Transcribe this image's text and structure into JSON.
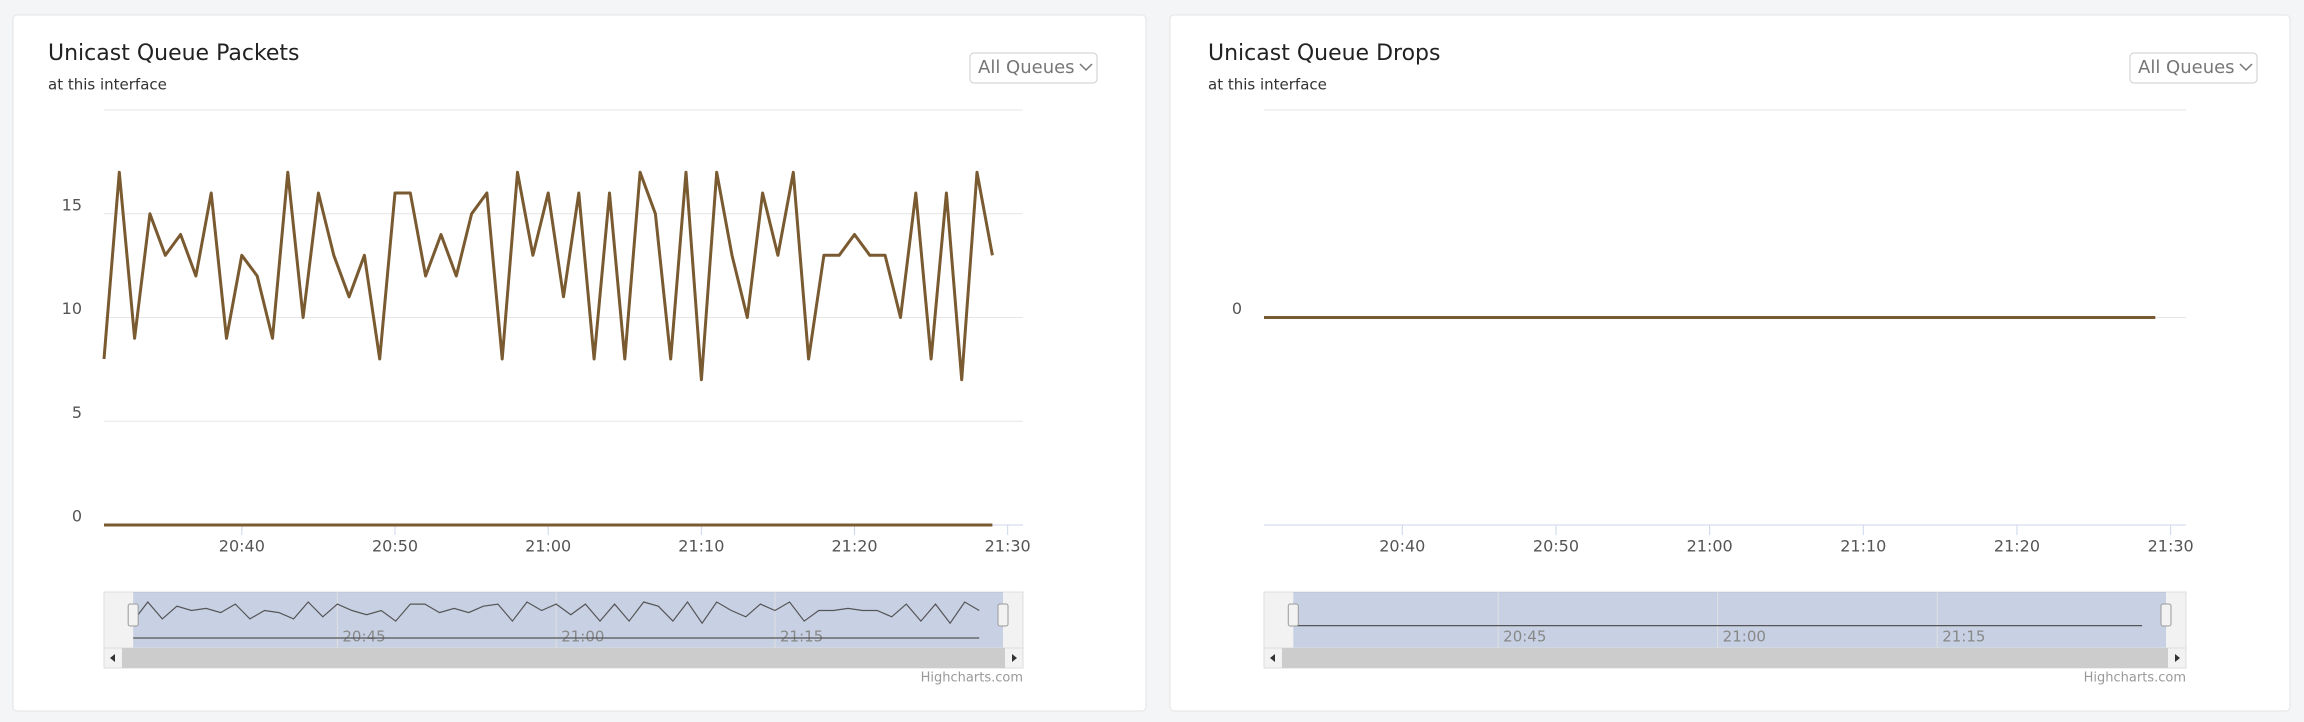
{
  "chart_data": [
    {
      "type": "line",
      "title": "Unicast Queue Packets",
      "subtitle": "at this interface",
      "dropdown": "All Queues",
      "credits": "Highcharts.com",
      "x": [
        "20:31",
        "20:32",
        "20:33",
        "20:34",
        "20:35",
        "20:36",
        "20:37",
        "20:38",
        "20:39",
        "20:40",
        "20:41",
        "20:42",
        "20:43",
        "20:44",
        "20:45",
        "20:46",
        "20:47",
        "20:48",
        "20:49",
        "20:50",
        "20:51",
        "20:52",
        "20:53",
        "20:54",
        "20:55",
        "20:56",
        "20:57",
        "20:58",
        "20:59",
        "21:00",
        "21:01",
        "21:02",
        "21:03",
        "21:04",
        "21:05",
        "21:06",
        "21:07",
        "21:08",
        "21:09",
        "21:10",
        "21:11",
        "21:12",
        "21:13",
        "21:14",
        "21:15",
        "21:16",
        "21:17",
        "21:18",
        "21:19",
        "21:20",
        "21:21",
        "21:22",
        "21:23",
        "21:24",
        "21:25",
        "21:26",
        "21:27",
        "21:28",
        "21:29"
      ],
      "series": [
        {
          "color": "#7a5a30",
          "values": [
            8,
            17,
            9,
            15,
            13,
            14,
            12,
            16,
            9,
            13,
            12,
            9,
            17,
            10,
            16,
            13,
            11,
            13,
            8,
            16,
            16,
            12,
            14,
            12,
            15,
            16,
            8,
            17,
            13,
            16,
            11,
            16,
            8,
            16,
            8,
            17,
            15,
            8,
            17,
            7,
            17,
            13,
            10,
            16,
            13,
            17,
            8,
            13,
            13,
            14,
            13,
            13,
            10,
            16,
            8,
            16,
            7,
            17,
            13
          ]
        },
        {
          "color": "#7a5a30",
          "values": [
            0,
            0,
            0,
            0,
            0,
            0,
            0,
            0,
            0,
            0,
            0,
            0,
            0,
            0,
            0,
            0,
            0,
            0,
            0,
            0,
            0,
            0,
            0,
            0,
            0,
            0,
            0,
            0,
            0,
            0,
            0,
            0,
            0,
            0,
            0,
            0,
            0,
            0,
            0,
            0,
            0,
            0,
            0,
            0,
            0,
            0,
            0,
            0,
            0,
            0,
            0,
            0,
            0,
            0,
            0,
            0,
            0,
            0,
            0
          ]
        }
      ],
      "xlim": [
        "20:31",
        "21:31"
      ],
      "xticks": [
        "20:40",
        "20:50",
        "21:00",
        "21:10",
        "21:20",
        "21:30"
      ],
      "ylim": [
        0,
        20
      ],
      "yticks": [
        0,
        5,
        10,
        15
      ],
      "grid": true,
      "navigator_xlim": [
        "20:29",
        "21:32"
      ],
      "navigator_xticks": [
        "20:45",
        "21:00",
        "21:15"
      ]
    },
    {
      "type": "line",
      "title": "Unicast Queue Drops",
      "subtitle": "at this interface",
      "dropdown": "All Queues",
      "credits": "Highcharts.com",
      "x": [
        "20:31",
        "20:32",
        "20:33",
        "20:34",
        "20:35",
        "20:36",
        "20:37",
        "20:38",
        "20:39",
        "20:40",
        "20:41",
        "20:42",
        "20:43",
        "20:44",
        "20:45",
        "20:46",
        "20:47",
        "20:48",
        "20:49",
        "20:50",
        "20:51",
        "20:52",
        "20:53",
        "20:54",
        "20:55",
        "20:56",
        "20:57",
        "20:58",
        "20:59",
        "21:00",
        "21:01",
        "21:02",
        "21:03",
        "21:04",
        "21:05",
        "21:06",
        "21:07",
        "21:08",
        "21:09",
        "21:10",
        "21:11",
        "21:12",
        "21:13",
        "21:14",
        "21:15",
        "21:16",
        "21:17",
        "21:18",
        "21:19",
        "21:20",
        "21:21",
        "21:22",
        "21:23",
        "21:24",
        "21:25",
        "21:26",
        "21:27",
        "21:28",
        "21:29"
      ],
      "series": [
        {
          "color": "#7a5a30",
          "values": [
            0,
            0,
            0,
            0,
            0,
            0,
            0,
            0,
            0,
            0,
            0,
            0,
            0,
            0,
            0,
            0,
            0,
            0,
            0,
            0,
            0,
            0,
            0,
            0,
            0,
            0,
            0,
            0,
            0,
            0,
            0,
            0,
            0,
            0,
            0,
            0,
            0,
            0,
            0,
            0,
            0,
            0,
            0,
            0,
            0,
            0,
            0,
            0,
            0,
            0,
            0,
            0,
            0,
            0,
            0,
            0,
            0,
            0,
            0
          ]
        }
      ],
      "xlim": [
        "20:31",
        "21:31"
      ],
      "xticks": [
        "20:40",
        "20:50",
        "21:00",
        "21:10",
        "21:20",
        "21:30"
      ],
      "ylim": [
        -1,
        1
      ],
      "yticks": [
        0
      ],
      "grid": true,
      "navigator_xlim": [
        "20:29",
        "21:32"
      ],
      "navigator_xticks": [
        "20:45",
        "21:00",
        "21:15"
      ]
    }
  ]
}
